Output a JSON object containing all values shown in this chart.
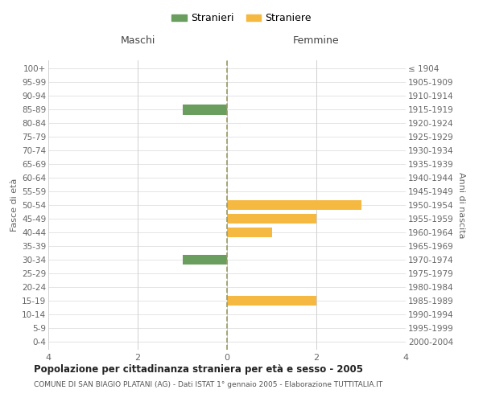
{
  "age_groups": [
    "100+",
    "95-99",
    "90-94",
    "85-89",
    "80-84",
    "75-79",
    "70-74",
    "65-69",
    "60-64",
    "55-59",
    "50-54",
    "45-49",
    "40-44",
    "35-39",
    "30-34",
    "25-29",
    "20-24",
    "15-19",
    "10-14",
    "5-9",
    "0-4"
  ],
  "birth_years": [
    "≤ 1904",
    "1905-1909",
    "1910-1914",
    "1915-1919",
    "1920-1924",
    "1925-1929",
    "1930-1934",
    "1935-1939",
    "1940-1944",
    "1945-1949",
    "1950-1954",
    "1955-1959",
    "1960-1964",
    "1965-1969",
    "1970-1974",
    "1975-1979",
    "1980-1984",
    "1985-1989",
    "1990-1994",
    "1995-1999",
    "2000-2004"
  ],
  "maschi": [
    0,
    0,
    0,
    -1,
    0,
    0,
    0,
    0,
    0,
    0,
    0,
    0,
    0,
    0,
    -1,
    0,
    0,
    0,
    0,
    0,
    0
  ],
  "femmine": [
    0,
    0,
    0,
    0,
    0,
    0,
    0,
    0,
    0,
    0,
    3,
    2,
    1,
    0,
    0,
    0,
    0,
    2,
    0,
    0,
    0
  ],
  "color_maschi": "#6a9e5f",
  "color_femmine": "#f5b942",
  "xlim": [
    -4,
    4
  ],
  "xticks": [
    -4,
    -2,
    0,
    2,
    4
  ],
  "xticklabels": [
    "4",
    "2",
    "0",
    "2",
    "4"
  ],
  "ylabel_left": "Fasce di età",
  "ylabel_right": "Anni di nascita",
  "title_maschi": "Maschi",
  "title_femmine": "Femmine",
  "legend_maschi": "Stranieri",
  "legend_femmine": "Straniere",
  "chart_title": "Popolazione per cittadinanza straniera per età e sesso - 2005",
  "chart_subtitle": "COMUNE DI SAN BIAGIO PLATANI (AG) - Dati ISTAT 1° gennaio 2005 - Elaborazione TUTTITALIA.IT",
  "background_color": "#ffffff",
  "grid_color": "#d0d0d0",
  "bar_height": 0.75
}
